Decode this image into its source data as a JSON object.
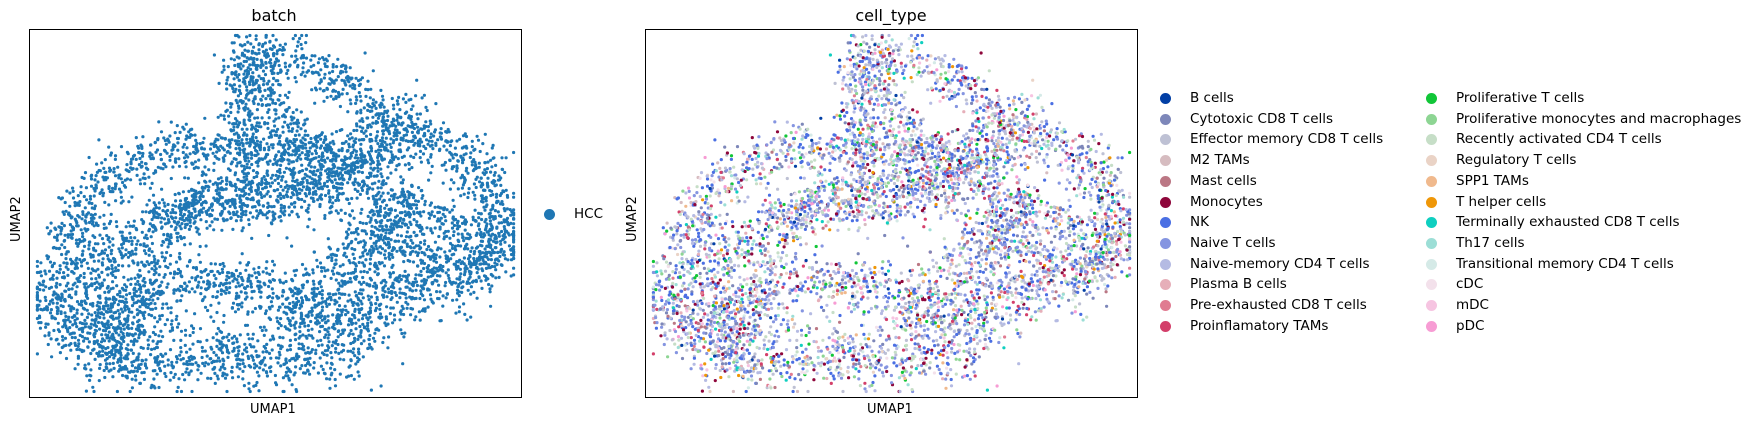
{
  "chart_data": [
    {
      "type": "scatter",
      "title": "batch",
      "xlabel": "UMAP1",
      "ylabel": "UMAP2",
      "x_ticks": false,
      "y_ticks": false,
      "legend": {
        "placement": "right",
        "entries": [
          {
            "name": "HCC",
            "color": "#1f77b4"
          }
        ]
      }
    },
    {
      "type": "scatter",
      "title": "cell_type",
      "xlabel": "UMAP1",
      "ylabel": "UMAP2",
      "x_ticks": false,
      "y_ticks": false,
      "legend": {
        "placement": "right",
        "columns": 2,
        "entries": [
          {
            "name": "B cells",
            "color": "#023fa5"
          },
          {
            "name": "Cytotoxic CD8 T cells",
            "color": "#7d87b9"
          },
          {
            "name": "Effector memory CD8 T cells",
            "color": "#bec1d4"
          },
          {
            "name": "M2 TAMs",
            "color": "#d6bcc0"
          },
          {
            "name": "Mast cells",
            "color": "#bb7784"
          },
          {
            "name": "Monocytes",
            "color": "#8e063b"
          },
          {
            "name": "NK",
            "color": "#4a6fe3"
          },
          {
            "name": "Naive T cells",
            "color": "#8595e1"
          },
          {
            "name": "Naive-memory CD4 T cells",
            "color": "#b5bbe3"
          },
          {
            "name": "Plasma B cells",
            "color": "#e6afb9"
          },
          {
            "name": "Pre-exhausted CD8 T cells",
            "color": "#e07b91"
          },
          {
            "name": "Proinflamatory TAMs",
            "color": "#d33f6a"
          },
          {
            "name": "Proliferative T cells",
            "color": "#11c638"
          },
          {
            "name": "Proliferative monocytes and macrophages",
            "color": "#8dd593"
          },
          {
            "name": "Recently activated CD4 T cells",
            "color": "#c6dec7"
          },
          {
            "name": "Regulatory T cells",
            "color": "#ead3c6"
          },
          {
            "name": "SPP1 TAMs",
            "color": "#f0b98d"
          },
          {
            "name": "T helper cells",
            "color": "#ef9708"
          },
          {
            "name": "Terminally exhausted CD8 T cells",
            "color": "#0fcfc0"
          },
          {
            "name": "Th17 cells",
            "color": "#9cded6"
          },
          {
            "name": "Transitional memory CD4 T cells",
            "color": "#d5eae7"
          },
          {
            "name": "cDC",
            "color": "#f3e1eb"
          },
          {
            "name": "mDC",
            "color": "#f6c4e1"
          },
          {
            "name": "pDC",
            "color": "#f79cd4"
          }
        ]
      }
    }
  ]
}
